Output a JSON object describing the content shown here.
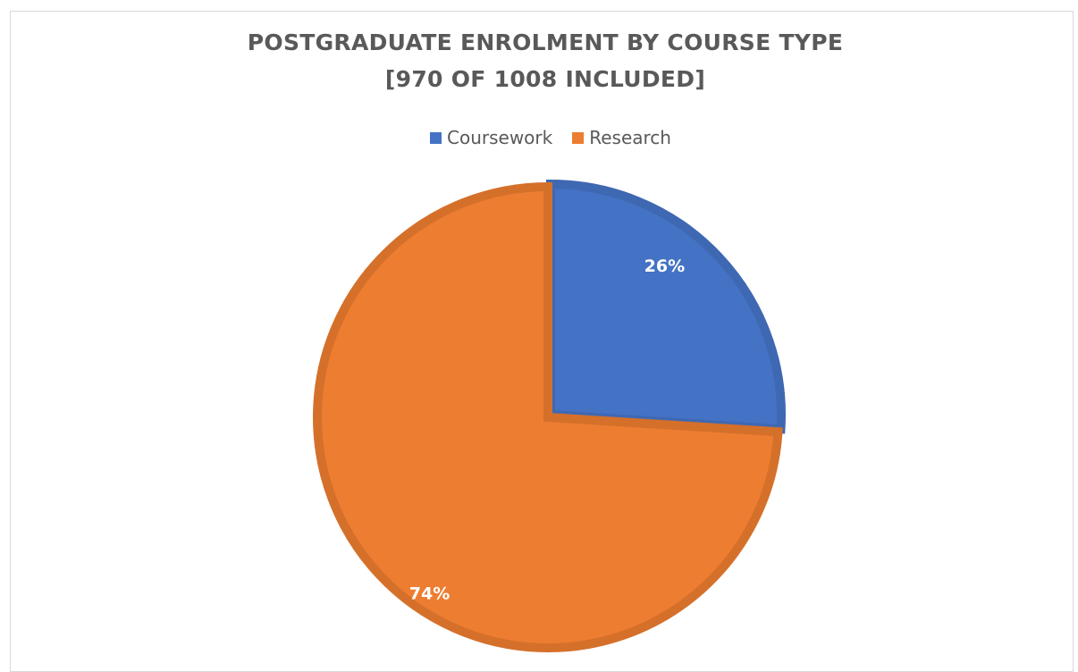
{
  "chart_data": {
    "type": "pie",
    "title_line1": "POSTGRADUATE ENROLMENT BY COURSE TYPE",
    "title_line2": "[970 OF 1008 INCLUDED]",
    "categories": [
      "Coursework",
      "Research"
    ],
    "values": [
      26,
      74
    ],
    "data_labels": [
      "26%",
      "74%"
    ],
    "colors": [
      "#4472c4",
      "#ed7d31"
    ],
    "border_colors": [
      "#3f68b3",
      "#d5702a"
    ],
    "legend_position": "top"
  }
}
